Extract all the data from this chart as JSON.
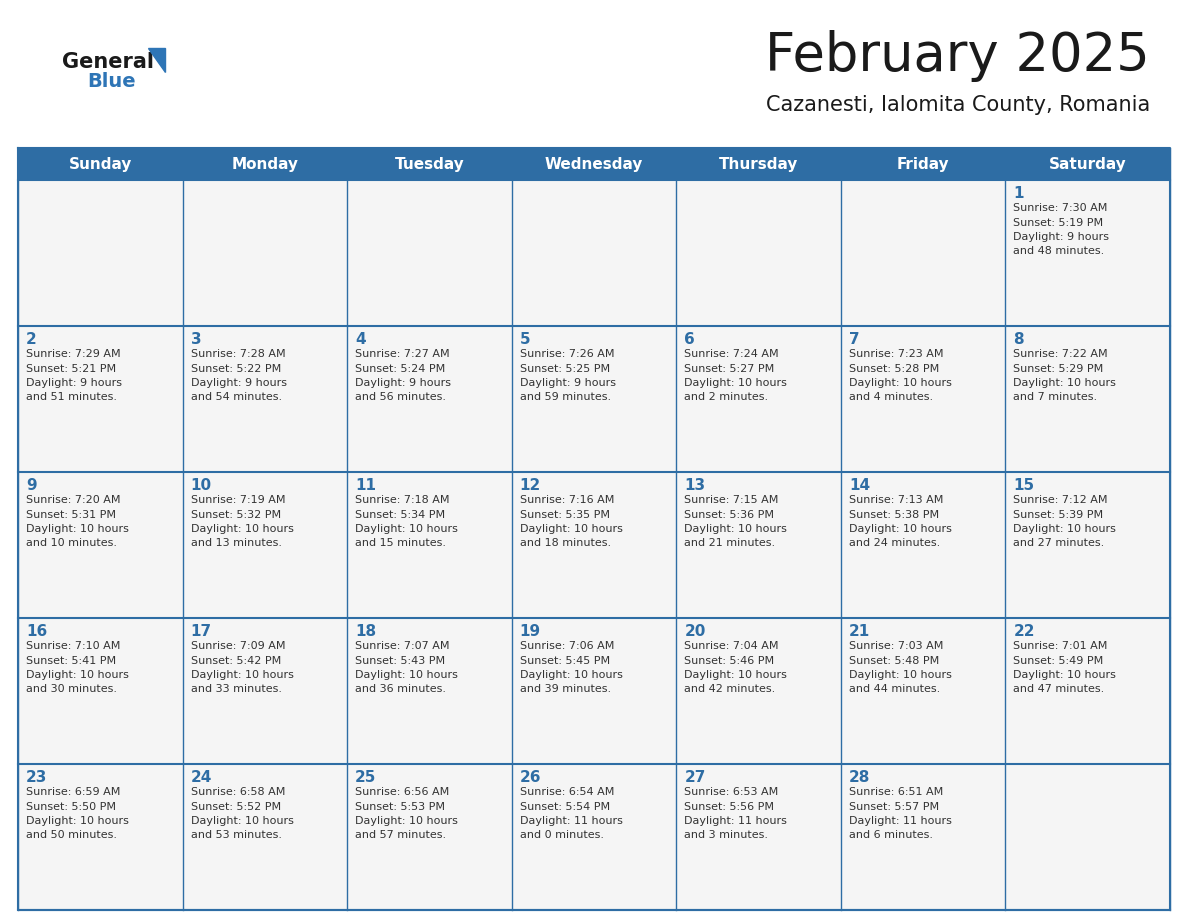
{
  "title": "February 2025",
  "subtitle": "Cazanesti, Ialomita County, Romania",
  "days_of_week": [
    "Sunday",
    "Monday",
    "Tuesday",
    "Wednesday",
    "Thursday",
    "Friday",
    "Saturday"
  ],
  "header_bg": "#2E6DA4",
  "header_text": "#FFFFFF",
  "cell_bg": "#F5F5F5",
  "cell_border": "#2E6DA4",
  "title_color": "#1a1a1a",
  "subtitle_color": "#1a1a1a",
  "day_num_color": "#2E6DA4",
  "info_color": "#333333",
  "logo_general_color": "#1a1a1a",
  "logo_blue_color": "#2E75B6",
  "calendar": [
    [
      null,
      null,
      null,
      null,
      null,
      null,
      {
        "day": 1,
        "sunrise": "7:30 AM",
        "sunset": "5:19 PM",
        "daylight_line1": "9 hours",
        "daylight_line2": "and 48 minutes."
      }
    ],
    [
      {
        "day": 2,
        "sunrise": "7:29 AM",
        "sunset": "5:21 PM",
        "daylight_line1": "9 hours",
        "daylight_line2": "and 51 minutes."
      },
      {
        "day": 3,
        "sunrise": "7:28 AM",
        "sunset": "5:22 PM",
        "daylight_line1": "9 hours",
        "daylight_line2": "and 54 minutes."
      },
      {
        "day": 4,
        "sunrise": "7:27 AM",
        "sunset": "5:24 PM",
        "daylight_line1": "9 hours",
        "daylight_line2": "and 56 minutes."
      },
      {
        "day": 5,
        "sunrise": "7:26 AM",
        "sunset": "5:25 PM",
        "daylight_line1": "9 hours",
        "daylight_line2": "and 59 minutes."
      },
      {
        "day": 6,
        "sunrise": "7:24 AM",
        "sunset": "5:27 PM",
        "daylight_line1": "10 hours",
        "daylight_line2": "and 2 minutes."
      },
      {
        "day": 7,
        "sunrise": "7:23 AM",
        "sunset": "5:28 PM",
        "daylight_line1": "10 hours",
        "daylight_line2": "and 4 minutes."
      },
      {
        "day": 8,
        "sunrise": "7:22 AM",
        "sunset": "5:29 PM",
        "daylight_line1": "10 hours",
        "daylight_line2": "and 7 minutes."
      }
    ],
    [
      {
        "day": 9,
        "sunrise": "7:20 AM",
        "sunset": "5:31 PM",
        "daylight_line1": "10 hours",
        "daylight_line2": "and 10 minutes."
      },
      {
        "day": 10,
        "sunrise": "7:19 AM",
        "sunset": "5:32 PM",
        "daylight_line1": "10 hours",
        "daylight_line2": "and 13 minutes."
      },
      {
        "day": 11,
        "sunrise": "7:18 AM",
        "sunset": "5:34 PM",
        "daylight_line1": "10 hours",
        "daylight_line2": "and 15 minutes."
      },
      {
        "day": 12,
        "sunrise": "7:16 AM",
        "sunset": "5:35 PM",
        "daylight_line1": "10 hours",
        "daylight_line2": "and 18 minutes."
      },
      {
        "day": 13,
        "sunrise": "7:15 AM",
        "sunset": "5:36 PM",
        "daylight_line1": "10 hours",
        "daylight_line2": "and 21 minutes."
      },
      {
        "day": 14,
        "sunrise": "7:13 AM",
        "sunset": "5:38 PM",
        "daylight_line1": "10 hours",
        "daylight_line2": "and 24 minutes."
      },
      {
        "day": 15,
        "sunrise": "7:12 AM",
        "sunset": "5:39 PM",
        "daylight_line1": "10 hours",
        "daylight_line2": "and 27 minutes."
      }
    ],
    [
      {
        "day": 16,
        "sunrise": "7:10 AM",
        "sunset": "5:41 PM",
        "daylight_line1": "10 hours",
        "daylight_line2": "and 30 minutes."
      },
      {
        "day": 17,
        "sunrise": "7:09 AM",
        "sunset": "5:42 PM",
        "daylight_line1": "10 hours",
        "daylight_line2": "and 33 minutes."
      },
      {
        "day": 18,
        "sunrise": "7:07 AM",
        "sunset": "5:43 PM",
        "daylight_line1": "10 hours",
        "daylight_line2": "and 36 minutes."
      },
      {
        "day": 19,
        "sunrise": "7:06 AM",
        "sunset": "5:45 PM",
        "daylight_line1": "10 hours",
        "daylight_line2": "and 39 minutes."
      },
      {
        "day": 20,
        "sunrise": "7:04 AM",
        "sunset": "5:46 PM",
        "daylight_line1": "10 hours",
        "daylight_line2": "and 42 minutes."
      },
      {
        "day": 21,
        "sunrise": "7:03 AM",
        "sunset": "5:48 PM",
        "daylight_line1": "10 hours",
        "daylight_line2": "and 44 minutes."
      },
      {
        "day": 22,
        "sunrise": "7:01 AM",
        "sunset": "5:49 PM",
        "daylight_line1": "10 hours",
        "daylight_line2": "and 47 minutes."
      }
    ],
    [
      {
        "day": 23,
        "sunrise": "6:59 AM",
        "sunset": "5:50 PM",
        "daylight_line1": "10 hours",
        "daylight_line2": "and 50 minutes."
      },
      {
        "day": 24,
        "sunrise": "6:58 AM",
        "sunset": "5:52 PM",
        "daylight_line1": "10 hours",
        "daylight_line2": "and 53 minutes."
      },
      {
        "day": 25,
        "sunrise": "6:56 AM",
        "sunset": "5:53 PM",
        "daylight_line1": "10 hours",
        "daylight_line2": "and 57 minutes."
      },
      {
        "day": 26,
        "sunrise": "6:54 AM",
        "sunset": "5:54 PM",
        "daylight_line1": "11 hours",
        "daylight_line2": "and 0 minutes."
      },
      {
        "day": 27,
        "sunrise": "6:53 AM",
        "sunset": "5:56 PM",
        "daylight_line1": "11 hours",
        "daylight_line2": "and 3 minutes."
      },
      {
        "day": 28,
        "sunrise": "6:51 AM",
        "sunset": "5:57 PM",
        "daylight_line1": "11 hours",
        "daylight_line2": "and 6 minutes."
      },
      null
    ]
  ]
}
